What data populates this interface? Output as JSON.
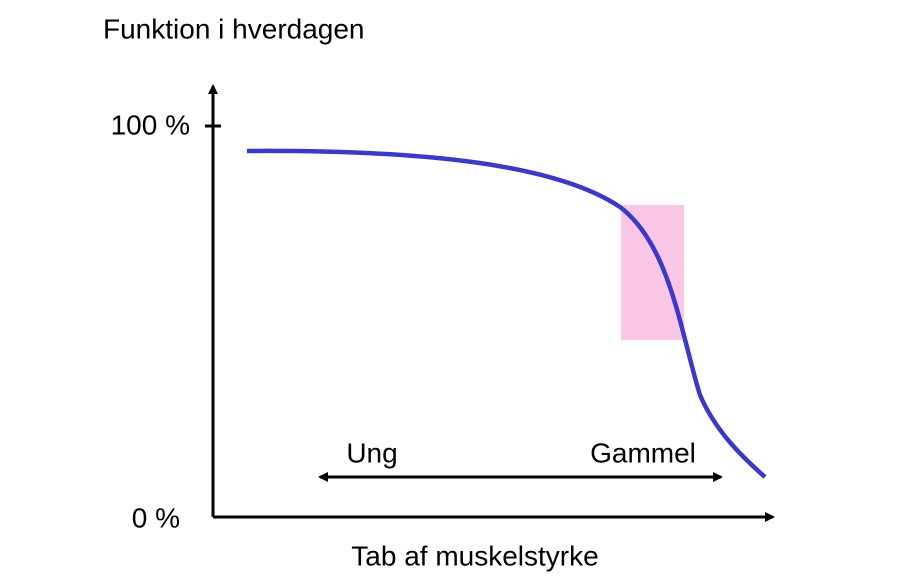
{
  "title": "Funktion i hverdagen",
  "y_ticks": {
    "top": "100 %",
    "bottom": "0 %"
  },
  "x_axis_title": "Tab af muskelstyrke",
  "range_labels": {
    "left": "Ung",
    "right": "Gammel"
  }
}
